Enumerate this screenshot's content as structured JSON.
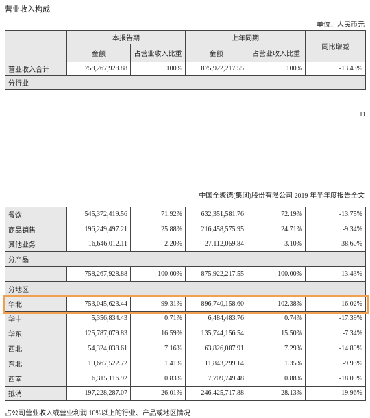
{
  "header": {
    "title": "营业收入构成",
    "unit": "单位：人民币元"
  },
  "table1": {
    "current": "本报告期",
    "previous": "上年同期",
    "change": "同比增减",
    "columns": [
      "金额",
      "占营业收入比重",
      "金额",
      "占营业收入比重"
    ],
    "rows": [
      [
        "营业收入合计",
        "758,267,928.88",
        "100%",
        "875,922,217.55",
        "100%",
        "-13.43%"
      ],
      [
        "分行业"
      ]
    ]
  },
  "page_number": "11",
  "running_header": "中国全聚德(集团)股份有限公司 2019 年半年度报告全文",
  "table2": {
    "rows": [
      [
        "餐饮",
        "545,372,419.56",
        "71.92%",
        "632,351,581.76",
        "72.19%",
        "-13.75%"
      ],
      [
        "商品销售",
        "196,249,497.21",
        "25.88%",
        "216,458,575.95",
        "24.71%",
        "-9.34%"
      ],
      [
        "其他业务",
        "16,646,012.11",
        "2.20%",
        "27,112,059.84",
        "3.10%",
        "-38.60%"
      ],
      [
        "分产品"
      ],
      [
        null,
        "758,267,928.88",
        "100.00%",
        "875,922,217.55",
        "100.00%",
        "-13.43%"
      ],
      [
        "分地区"
      ],
      [
        "华北",
        "753,045,623.44",
        "99.31%",
        "896,740,158.60",
        "102.38%",
        "-16.02%"
      ],
      [
        "华中",
        "5,356,834.43",
        "0.71%",
        "6,484,483.76",
        "0.74%",
        "-17.39%"
      ],
      [
        "华东",
        "125,787,079.83",
        "16.59%",
        "135,744,156.54",
        "15.50%",
        "-7.34%"
      ],
      [
        "西北",
        "54,324,038.61",
        "7.16%",
        "63,826,087.91",
        "7.29%",
        "-14.89%"
      ],
      [
        "东北",
        "10,667,522.72",
        "1.41%",
        "11,843,299.14",
        "1.35%",
        "-9.93%"
      ],
      [
        "西南",
        "6,315,116.92",
        "0.83%",
        "7,709,749.48",
        "0.88%",
        "-18.09%"
      ],
      [
        "抵消",
        "-197,228,287.07",
        "-26.01%",
        "-246,425,717.88",
        "-28.13%",
        "-19.96%"
      ]
    ]
  },
  "footer": "占公司营业收入或营业利润 10%以上的行业、产品或地区情况"
}
